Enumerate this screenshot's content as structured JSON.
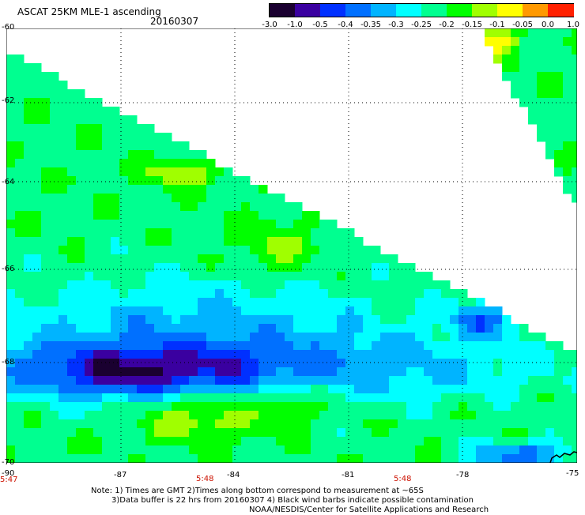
{
  "title": "ASCAT 25KM MLE-1 ascending",
  "date": "20160307",
  "colorbar": {
    "labels": [
      "-3.0",
      "-1.0",
      "-0.5",
      "-0.4",
      "-0.35",
      "-0.3",
      "-0.25",
      "-0.2",
      "-0.15",
      "-0.1",
      "-0.05",
      "0.0",
      "1.0"
    ],
    "colors": [
      "#1a0030",
      "#3a00a0",
      "#0030ff",
      "#0070ff",
      "#00b4ff",
      "#00ffff",
      "#00ff90",
      "#00ff00",
      "#a0ff00",
      "#ffff00",
      "#ff9900",
      "#ff2000"
    ]
  },
  "axes": {
    "lat_labels": [
      "-60",
      "-62",
      "-64",
      "-66",
      "-68",
      "-70"
    ],
    "lon_labels": [
      "-90",
      "-87",
      "-84",
      "-81",
      "-78",
      "-75"
    ],
    "times": [
      "5:47",
      "5:48",
      "5:48"
    ]
  },
  "notes": {
    "line1": "Note: 1) Times are GMT 2)Times along bottom correspond to measurement at ~65S",
    "line2": "3)Data buffer is 22 hrs from 20160307 4) Black wind barbs indicate possible contamination",
    "line3": "NOAA/NESDIS/Center for Satellite Applications and Research"
  }
}
